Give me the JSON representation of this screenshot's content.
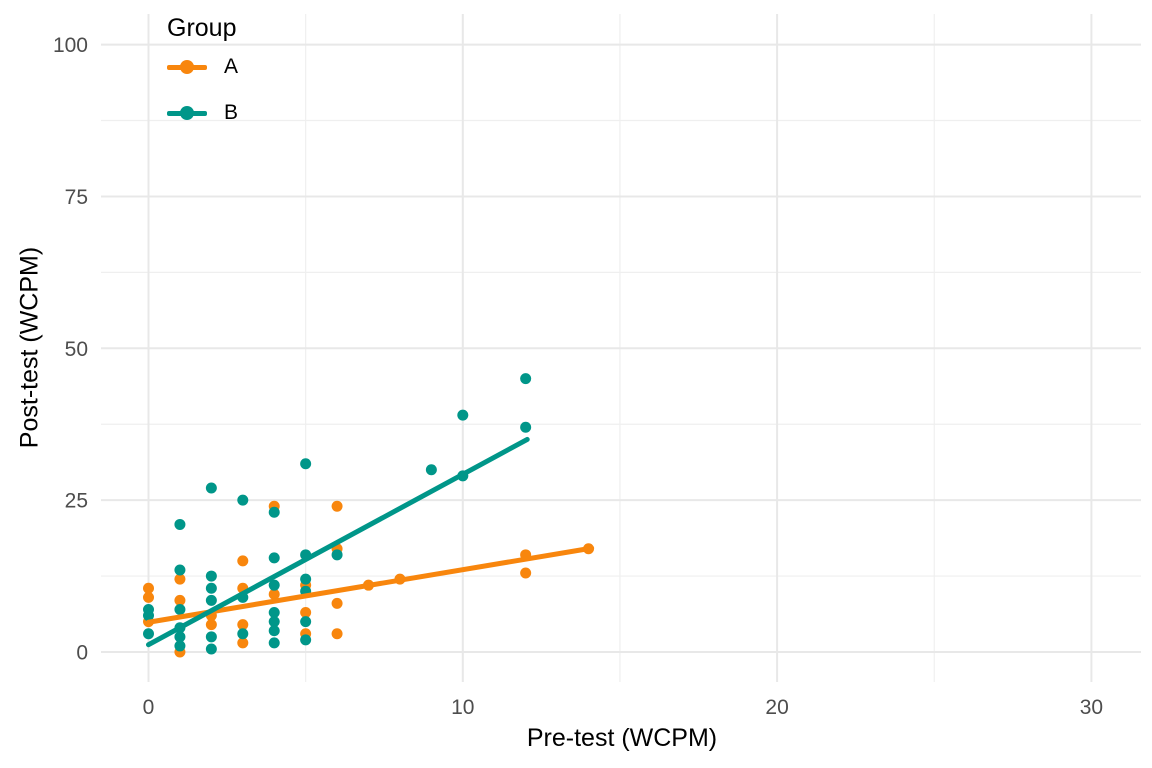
{
  "figure": {
    "background": "#ffffff",
    "legend": {
      "title": "Group",
      "entries": [
        {
          "label": "A",
          "color": "#F8860D"
        },
        {
          "label": "B",
          "color": "#009689"
        }
      ]
    },
    "styles": {
      "grid_major_color": "#E8E8E8",
      "grid_minor_color": "#EFEFEF",
      "tick_label_color": "#4D4D4D",
      "axis_title_color": "#000000"
    }
  },
  "chart_data": {
    "type": "scatter",
    "title": "",
    "xlabel": "Pre-test (WCPM)",
    "ylabel": "Post-test (WCPM)",
    "xlim": [
      -1.5,
      31.6
    ],
    "ylim": [
      -5,
      105
    ],
    "x_ticks": [
      0,
      10,
      20,
      30
    ],
    "x_minor_ticks": [
      5,
      15,
      25
    ],
    "y_ticks": [
      0,
      25,
      50,
      75,
      100
    ],
    "y_minor_ticks": [
      12.5,
      37.5,
      62.5,
      87.5
    ],
    "grid": true,
    "legend_position": "top-left-inside",
    "series": [
      {
        "name": "A",
        "color": "#F8860D",
        "points": [
          [
            0,
            10.5
          ],
          [
            0,
            9
          ],
          [
            0,
            5
          ],
          [
            1,
            12
          ],
          [
            1,
            8.5
          ],
          [
            1,
            0
          ],
          [
            2,
            6
          ],
          [
            2,
            4.5
          ],
          [
            3,
            15
          ],
          [
            3,
            10.5
          ],
          [
            3,
            4.5
          ],
          [
            3,
            1.5
          ],
          [
            4,
            24
          ],
          [
            4,
            9.5
          ],
          [
            5,
            11
          ],
          [
            5,
            6.5
          ],
          [
            5,
            3
          ],
          [
            6,
            24
          ],
          [
            6,
            17
          ],
          [
            6,
            8
          ],
          [
            6,
            3
          ],
          [
            7,
            11
          ],
          [
            8,
            12
          ],
          [
            12,
            16
          ],
          [
            12,
            13
          ],
          [
            14,
            17
          ]
        ],
        "trend_line": {
          "x1": 0,
          "y1": 4.9,
          "x2": 14.1,
          "y2": 17.1
        }
      },
      {
        "name": "B",
        "color": "#009689",
        "points": [
          [
            0,
            7
          ],
          [
            0,
            6
          ],
          [
            0,
            3
          ],
          [
            1,
            21
          ],
          [
            1,
            13.5
          ],
          [
            1,
            7
          ],
          [
            1,
            4
          ],
          [
            1,
            2.5
          ],
          [
            1,
            1
          ],
          [
            2,
            27
          ],
          [
            2,
            12.5
          ],
          [
            2,
            10.5
          ],
          [
            2,
            8.5
          ],
          [
            2,
            2.5
          ],
          [
            2,
            0.5
          ],
          [
            3,
            25
          ],
          [
            3,
            9
          ],
          [
            3,
            3
          ],
          [
            4,
            23
          ],
          [
            4,
            15.5
          ],
          [
            4,
            11
          ],
          [
            4,
            6.5
          ],
          [
            4,
            5
          ],
          [
            4,
            3.5
          ],
          [
            4,
            1.5
          ],
          [
            5,
            31
          ],
          [
            5,
            16
          ],
          [
            5,
            12
          ],
          [
            5,
            10
          ],
          [
            5,
            5
          ],
          [
            5,
            2
          ],
          [
            6,
            16
          ],
          [
            9,
            30
          ],
          [
            10,
            39
          ],
          [
            10,
            29
          ],
          [
            12,
            45
          ],
          [
            12,
            37
          ]
        ],
        "trend_line": {
          "x1": 0,
          "y1": 1.2,
          "x2": 12.05,
          "y2": 35
        }
      }
    ]
  }
}
